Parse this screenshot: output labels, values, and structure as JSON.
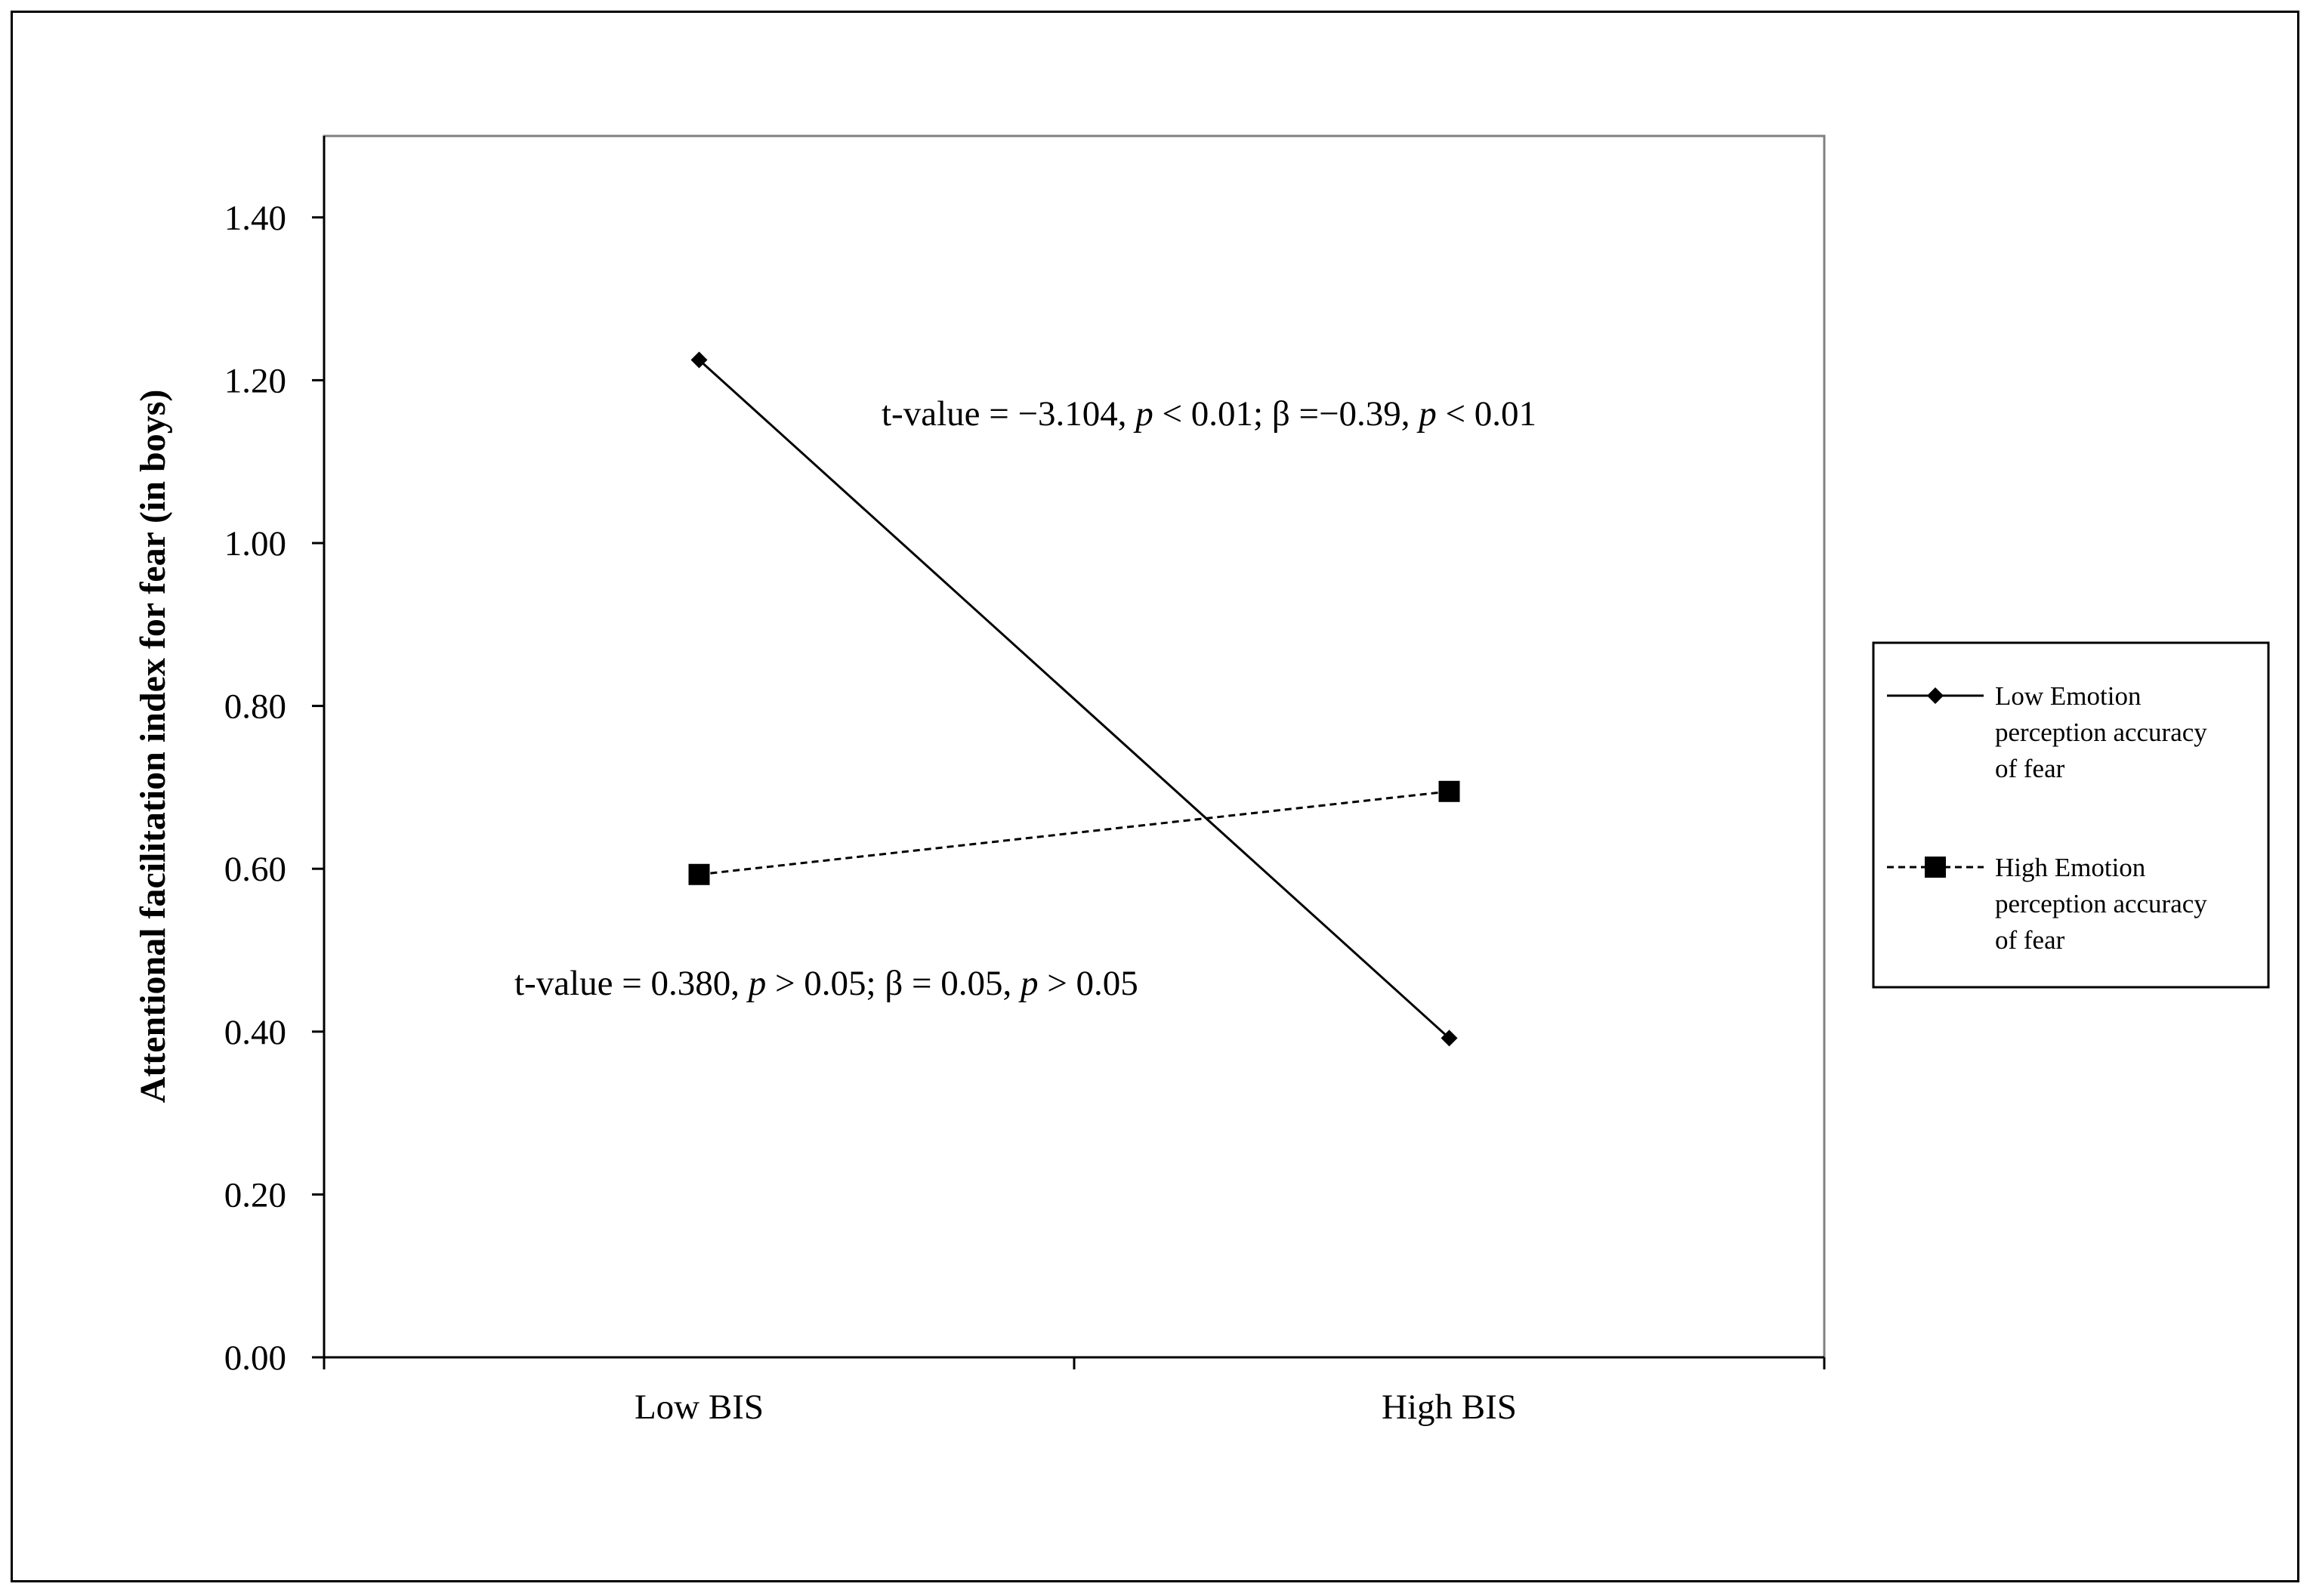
{
  "chart_data": {
    "type": "line",
    "categories": [
      "Low BIS",
      "High BIS"
    ],
    "series": [
      {
        "name": "Low Emotion perception accuracy of fear",
        "legend_lines": [
          "Low Emotion",
          "perception accuracy",
          "of fear"
        ],
        "values": [
          1.225,
          0.392
        ],
        "marker": "diamond",
        "line_style": "solid"
      },
      {
        "name": "High Emotion perception accuracy of fear",
        "legend_lines": [
          "High Emotion",
          "perception accuracy",
          "of fear"
        ],
        "values": [
          0.593,
          0.695
        ],
        "marker": "square",
        "line_style": "dashed"
      }
    ],
    "xlabel": "",
    "ylabel": "Attentional facilitation index for fear (in boys)",
    "ylim": [
      0,
      1.5
    ],
    "yticks": [
      "0.00",
      "0.20",
      "0.40",
      "0.60",
      "0.80",
      "1.00",
      "1.20",
      "1.40"
    ],
    "grid": false,
    "legend_position": "right",
    "annotations": [
      {
        "id": "low",
        "parts": [
          {
            "text": "t-value = −3.104, ",
            "italic": false
          },
          {
            "text": "p",
            "italic": true
          },
          {
            "text": " < 0.01; β =−0.39, ",
            "italic": false
          },
          {
            "text": "p",
            "italic": true
          },
          {
            "text": " < 0.01",
            "italic": false
          }
        ]
      },
      {
        "id": "high",
        "parts": [
          {
            "text": "t-value = 0.380, ",
            "italic": false
          },
          {
            "text": "p",
            "italic": true
          },
          {
            "text": " > 0.05; β = 0.05, ",
            "italic": false
          },
          {
            "text": "p",
            "italic": true
          },
          {
            "text": " > 0.05",
            "italic": false
          }
        ]
      }
    ],
    "colors": {
      "line": "#000000",
      "background": "#ffffff"
    }
  }
}
